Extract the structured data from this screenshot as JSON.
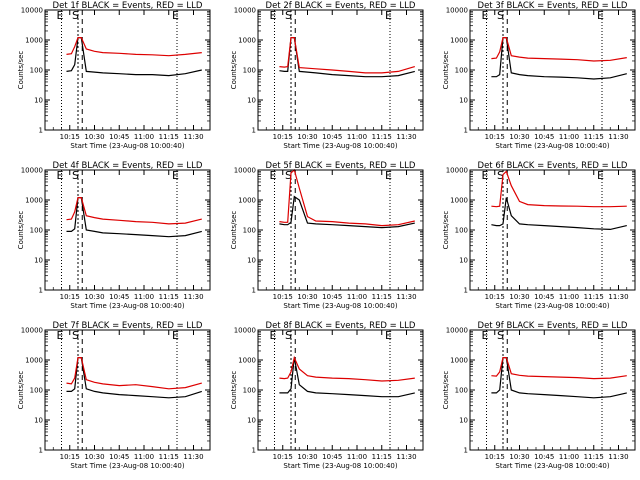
{
  "figure": {
    "xlabel": "Start Time (23-Aug-08 10:00:40)",
    "ylabel": "Counts/sec",
    "x_tick_labels": [
      "10:15",
      "10:30",
      "10:45",
      "11:00",
      "11:15",
      "11:30"
    ],
    "y_tick_labels": [
      "1",
      "10",
      "100",
      "1000",
      "10000"
    ],
    "marker_labels": [
      "E",
      "S",
      "E"
    ],
    "colors": {
      "events": "#000000",
      "lld": "#dd0000",
      "background": "#ffffff",
      "axes": "#000000"
    }
  },
  "chart_data": [
    {
      "type": "line",
      "title": "Det 1f BLACK = Events, RED = LLD",
      "xlabel": "Start Time (23-Aug-08 10:00:40)",
      "ylabel": "Counts/sec",
      "x_ticks": [
        "10:15",
        "10:30",
        "10:45",
        "11:00",
        "11:15",
        "11:30"
      ],
      "y_scale": "log",
      "ylim": [
        1,
        10000
      ],
      "markers": [
        {
          "label": "E",
          "time": "10:10"
        },
        {
          "label": "S",
          "time": "10:20"
        },
        {
          "label": "E",
          "time": "11:20"
        }
      ],
      "series": [
        {
          "color": "#000000",
          "x": [
            "10:13",
            "10:16",
            "10:18",
            "10:20",
            "10:22",
            "10:25",
            "10:30",
            "10:35",
            "10:45",
            "10:55",
            "11:05",
            "11:15",
            "11:25",
            "11:35"
          ],
          "y": [
            90,
            95,
            150,
            1200,
            1200,
            90,
            85,
            80,
            75,
            70,
            70,
            65,
            75,
            100
          ]
        },
        {
          "color": "#dd0000",
          "x": [
            "10:13",
            "10:16",
            "10:18",
            "10:20",
            "10:22",
            "10:25",
            "10:30",
            "10:35",
            "10:45",
            "10:55",
            "11:05",
            "11:15",
            "11:25",
            "11:35"
          ],
          "y": [
            330,
            350,
            600,
            1200,
            1200,
            500,
            420,
            380,
            360,
            330,
            320,
            300,
            330,
            380
          ]
        }
      ]
    },
    {
      "type": "line",
      "title": "Det 2f BLACK = Events, RED = LLD",
      "xlabel": "Start Time (23-Aug-08 10:00:40)",
      "ylabel": "Counts/sec",
      "x_ticks": [
        "10:15",
        "10:30",
        "10:45",
        "11:00",
        "11:15",
        "11:30"
      ],
      "y_scale": "log",
      "ylim": [
        1,
        10000
      ],
      "markers": [
        {
          "label": "E",
          "time": "10:10"
        },
        {
          "label": "S",
          "time": "10:20"
        },
        {
          "label": "E",
          "time": "11:20"
        }
      ],
      "series": [
        {
          "color": "#000000",
          "x": [
            "10:13",
            "10:16",
            "10:18",
            "10:20",
            "10:22",
            "10:25",
            "10:30",
            "10:35",
            "10:45",
            "10:55",
            "11:05",
            "11:15",
            "11:25",
            "11:35"
          ],
          "y": [
            95,
            90,
            90,
            1200,
            1200,
            90,
            85,
            80,
            70,
            65,
            60,
            60,
            65,
            90
          ]
        },
        {
          "color": "#dd0000",
          "x": [
            "10:13",
            "10:16",
            "10:18",
            "10:20",
            "10:22",
            "10:25",
            "10:30",
            "10:35",
            "10:45",
            "10:55",
            "11:05",
            "11:15",
            "11:25",
            "11:35"
          ],
          "y": [
            130,
            125,
            130,
            1200,
            1200,
            120,
            115,
            110,
            100,
            90,
            80,
            80,
            90,
            130
          ]
        }
      ]
    },
    {
      "type": "line",
      "title": "Det 3f BLACK = Events, RED = LLD",
      "xlabel": "Start Time (23-Aug-08 10:00:40)",
      "ylabel": "Counts/sec",
      "x_ticks": [
        "10:15",
        "10:30",
        "10:45",
        "11:00",
        "11:15",
        "11:30"
      ],
      "y_scale": "log",
      "ylim": [
        1,
        10000
      ],
      "markers": [
        {
          "label": "E",
          "time": "10:10"
        },
        {
          "label": "S",
          "time": "10:20"
        },
        {
          "label": "E",
          "time": "11:20"
        }
      ],
      "series": [
        {
          "color": "#000000",
          "x": [
            "10:13",
            "10:16",
            "10:18",
            "10:20",
            "10:22",
            "10:25",
            "10:30",
            "10:35",
            "10:45",
            "10:55",
            "11:05",
            "11:15",
            "11:25",
            "11:35"
          ],
          "y": [
            60,
            60,
            70,
            1200,
            1200,
            80,
            70,
            65,
            60,
            58,
            55,
            50,
            55,
            75
          ]
        },
        {
          "color": "#dd0000",
          "x": [
            "10:13",
            "10:16",
            "10:18",
            "10:20",
            "10:22",
            "10:25",
            "10:30",
            "10:35",
            "10:45",
            "10:55",
            "11:05",
            "11:15",
            "11:25",
            "11:35"
          ],
          "y": [
            240,
            250,
            400,
            1200,
            1200,
            300,
            270,
            250,
            240,
            230,
            220,
            200,
            210,
            260
          ]
        }
      ]
    },
    {
      "type": "line",
      "title": "Det 4f BLACK = Events, RED = LLD",
      "xlabel": "Start Time (23-Aug-08 10:00:40)",
      "ylabel": "Counts/sec",
      "x_ticks": [
        "10:15",
        "10:30",
        "10:45",
        "11:00",
        "11:15",
        "11:30"
      ],
      "y_scale": "log",
      "ylim": [
        1,
        10000
      ],
      "markers": [
        {
          "label": "E",
          "time": "10:10"
        },
        {
          "label": "S",
          "time": "10:20"
        },
        {
          "label": "E",
          "time": "11:20"
        }
      ],
      "series": [
        {
          "color": "#000000",
          "x": [
            "10:13",
            "10:16",
            "10:18",
            "10:20",
            "10:22",
            "10:25",
            "10:30",
            "10:35",
            "10:45",
            "10:55",
            "11:05",
            "11:15",
            "11:25",
            "11:35"
          ],
          "y": [
            90,
            90,
            110,
            1200,
            1200,
            100,
            90,
            80,
            75,
            70,
            65,
            60,
            65,
            90
          ]
        },
        {
          "color": "#dd0000",
          "x": [
            "10:13",
            "10:16",
            "10:18",
            "10:20",
            "10:22",
            "10:25",
            "10:30",
            "10:35",
            "10:45",
            "10:55",
            "11:05",
            "11:15",
            "11:25",
            "11:35"
          ],
          "y": [
            220,
            230,
            400,
            1200,
            1200,
            300,
            260,
            230,
            210,
            190,
            180,
            160,
            170,
            230
          ]
        }
      ]
    },
    {
      "type": "line",
      "title": "Det 5f BLACK = Events, RED = LLD",
      "xlabel": "Start Time (23-Aug-08 10:00:40)",
      "ylabel": "Counts/sec",
      "x_ticks": [
        "10:15",
        "10:30",
        "10:45",
        "11:00",
        "11:15",
        "11:30"
      ],
      "y_scale": "log",
      "ylim": [
        1,
        10000
      ],
      "markers": [
        {
          "label": "E",
          "time": "10:10"
        },
        {
          "label": "S",
          "time": "10:20"
        },
        {
          "label": "E",
          "time": "11:20"
        }
      ],
      "series": [
        {
          "color": "#000000",
          "x": [
            "10:13",
            "10:16",
            "10:18",
            "10:20",
            "10:22",
            "10:25",
            "10:30",
            "10:35",
            "10:45",
            "10:55",
            "11:05",
            "11:15",
            "11:25",
            "11:35"
          ],
          "y": [
            160,
            150,
            150,
            180,
            1300,
            1000,
            170,
            160,
            150,
            140,
            130,
            120,
            130,
            170
          ]
        },
        {
          "color": "#dd0000",
          "x": [
            "10:13",
            "10:16",
            "10:18",
            "10:20",
            "10:22",
            "10:25",
            "10:30",
            "10:35",
            "10:45",
            "10:55",
            "11:05",
            "11:15",
            "11:25",
            "11:35"
          ],
          "y": [
            190,
            180,
            180,
            8000,
            10000,
            2500,
            280,
            200,
            190,
            170,
            160,
            140,
            150,
            200
          ]
        }
      ]
    },
    {
      "type": "line",
      "title": "Det 6f BLACK = Events, RED = LLD",
      "xlabel": "Start Time (23-Aug-08 10:00:40)",
      "ylabel": "Counts/sec",
      "x_ticks": [
        "10:15",
        "10:30",
        "10:45",
        "11:00",
        "11:15",
        "11:30"
      ],
      "y_scale": "log",
      "ylim": [
        1,
        10000
      ],
      "markers": [
        {
          "label": "E",
          "time": "10:10"
        },
        {
          "label": "S",
          "time": "10:20"
        },
        {
          "label": "E",
          "time": "11:20"
        }
      ],
      "series": [
        {
          "color": "#000000",
          "x": [
            "10:13",
            "10:16",
            "10:18",
            "10:20",
            "10:22",
            "10:25",
            "10:30",
            "10:35",
            "10:45",
            "10:55",
            "11:05",
            "11:15",
            "11:25",
            "11:35"
          ],
          "y": [
            150,
            140,
            140,
            160,
            1200,
            300,
            160,
            150,
            140,
            130,
            120,
            110,
            105,
            140
          ]
        },
        {
          "color": "#dd0000",
          "x": [
            "10:13",
            "10:16",
            "10:18",
            "10:20",
            "10:22",
            "10:25",
            "10:30",
            "10:35",
            "10:45",
            "10:55",
            "11:05",
            "11:15",
            "11:25",
            "11:35"
          ],
          "y": [
            620,
            600,
            620,
            7000,
            9000,
            3000,
            900,
            700,
            650,
            630,
            620,
            600,
            600,
            620
          ]
        }
      ]
    },
    {
      "type": "line",
      "title": "Det 7f BLACK = Events, RED = LLD",
      "xlabel": "Start Time (23-Aug-08 10:00:40)",
      "ylabel": "Counts/sec",
      "x_ticks": [
        "10:15",
        "10:30",
        "10:45",
        "11:00",
        "11:15",
        "11:30"
      ],
      "y_scale": "log",
      "ylim": [
        1,
        10000
      ],
      "markers": [
        {
          "label": "E",
          "time": "10:10"
        },
        {
          "label": "S",
          "time": "10:20"
        },
        {
          "label": "E",
          "time": "11:20"
        }
      ],
      "series": [
        {
          "color": "#000000",
          "x": [
            "10:13",
            "10:16",
            "10:18",
            "10:20",
            "10:22",
            "10:25",
            "10:30",
            "10:35",
            "10:45",
            "10:55",
            "11:05",
            "11:15",
            "11:25",
            "11:35"
          ],
          "y": [
            90,
            90,
            110,
            1200,
            1200,
            110,
            90,
            80,
            70,
            65,
            60,
            55,
            60,
            90
          ]
        },
        {
          "color": "#dd0000",
          "x": [
            "10:13",
            "10:16",
            "10:18",
            "10:20",
            "10:22",
            "10:25",
            "10:30",
            "10:35",
            "10:45",
            "10:55",
            "11:05",
            "11:15",
            "11:25",
            "11:35"
          ],
          "y": [
            170,
            160,
            250,
            1200,
            1200,
            220,
            180,
            160,
            140,
            150,
            130,
            110,
            120,
            170
          ]
        }
      ]
    },
    {
      "type": "line",
      "title": "Det 8f BLACK = Events, RED = LLD",
      "xlabel": "Start Time (23-Aug-08 10:00:40)",
      "ylabel": "Counts/sec",
      "x_ticks": [
        "10:15",
        "10:30",
        "10:45",
        "11:00",
        "11:15",
        "11:30"
      ],
      "y_scale": "log",
      "ylim": [
        1,
        10000
      ],
      "markers": [
        {
          "label": "E",
          "time": "10:10"
        },
        {
          "label": "S",
          "time": "10:20"
        },
        {
          "label": "E",
          "time": "11:20"
        }
      ],
      "series": [
        {
          "color": "#000000",
          "x": [
            "10:13",
            "10:16",
            "10:18",
            "10:20",
            "10:22",
            "10:25",
            "10:30",
            "10:35",
            "10:45",
            "10:55",
            "11:05",
            "11:15",
            "11:25",
            "11:35"
          ],
          "y": [
            80,
            80,
            80,
            110,
            1200,
            150,
            90,
            80,
            75,
            70,
            65,
            60,
            60,
            80
          ]
        },
        {
          "color": "#dd0000",
          "x": [
            "10:13",
            "10:16",
            "10:18",
            "10:20",
            "10:22",
            "10:25",
            "10:30",
            "10:35",
            "10:45",
            "10:55",
            "11:05",
            "11:15",
            "11:25",
            "11:35"
          ],
          "y": [
            250,
            240,
            250,
            400,
            1200,
            500,
            300,
            270,
            250,
            240,
            220,
            200,
            210,
            250
          ]
        }
      ]
    },
    {
      "type": "line",
      "title": "Det 9f BLACK = Events, RED = LLD",
      "xlabel": "Start Time (23-Aug-08 10:00:40)",
      "ylabel": "Counts/sec",
      "x_ticks": [
        "10:15",
        "10:30",
        "10:45",
        "11:00",
        "11:15",
        "11:30"
      ],
      "y_scale": "log",
      "ylim": [
        1,
        10000
      ],
      "markers": [
        {
          "label": "E",
          "time": "10:10"
        },
        {
          "label": "S",
          "time": "10:20"
        },
        {
          "label": "E",
          "time": "11:20"
        }
      ],
      "series": [
        {
          "color": "#000000",
          "x": [
            "10:13",
            "10:16",
            "10:18",
            "10:20",
            "10:22",
            "10:25",
            "10:30",
            "10:35",
            "10:45",
            "10:55",
            "11:05",
            "11:15",
            "11:25",
            "11:35"
          ],
          "y": [
            80,
            80,
            100,
            1200,
            1200,
            100,
            80,
            75,
            70,
            65,
            60,
            55,
            60,
            80
          ]
        },
        {
          "color": "#dd0000",
          "x": [
            "10:13",
            "10:16",
            "10:18",
            "10:20",
            "10:22",
            "10:25",
            "10:30",
            "10:35",
            "10:45",
            "10:55",
            "11:05",
            "11:15",
            "11:25",
            "11:35"
          ],
          "y": [
            300,
            290,
            400,
            1200,
            1200,
            350,
            310,
            290,
            280,
            270,
            260,
            240,
            250,
            300
          ]
        }
      ]
    }
  ]
}
